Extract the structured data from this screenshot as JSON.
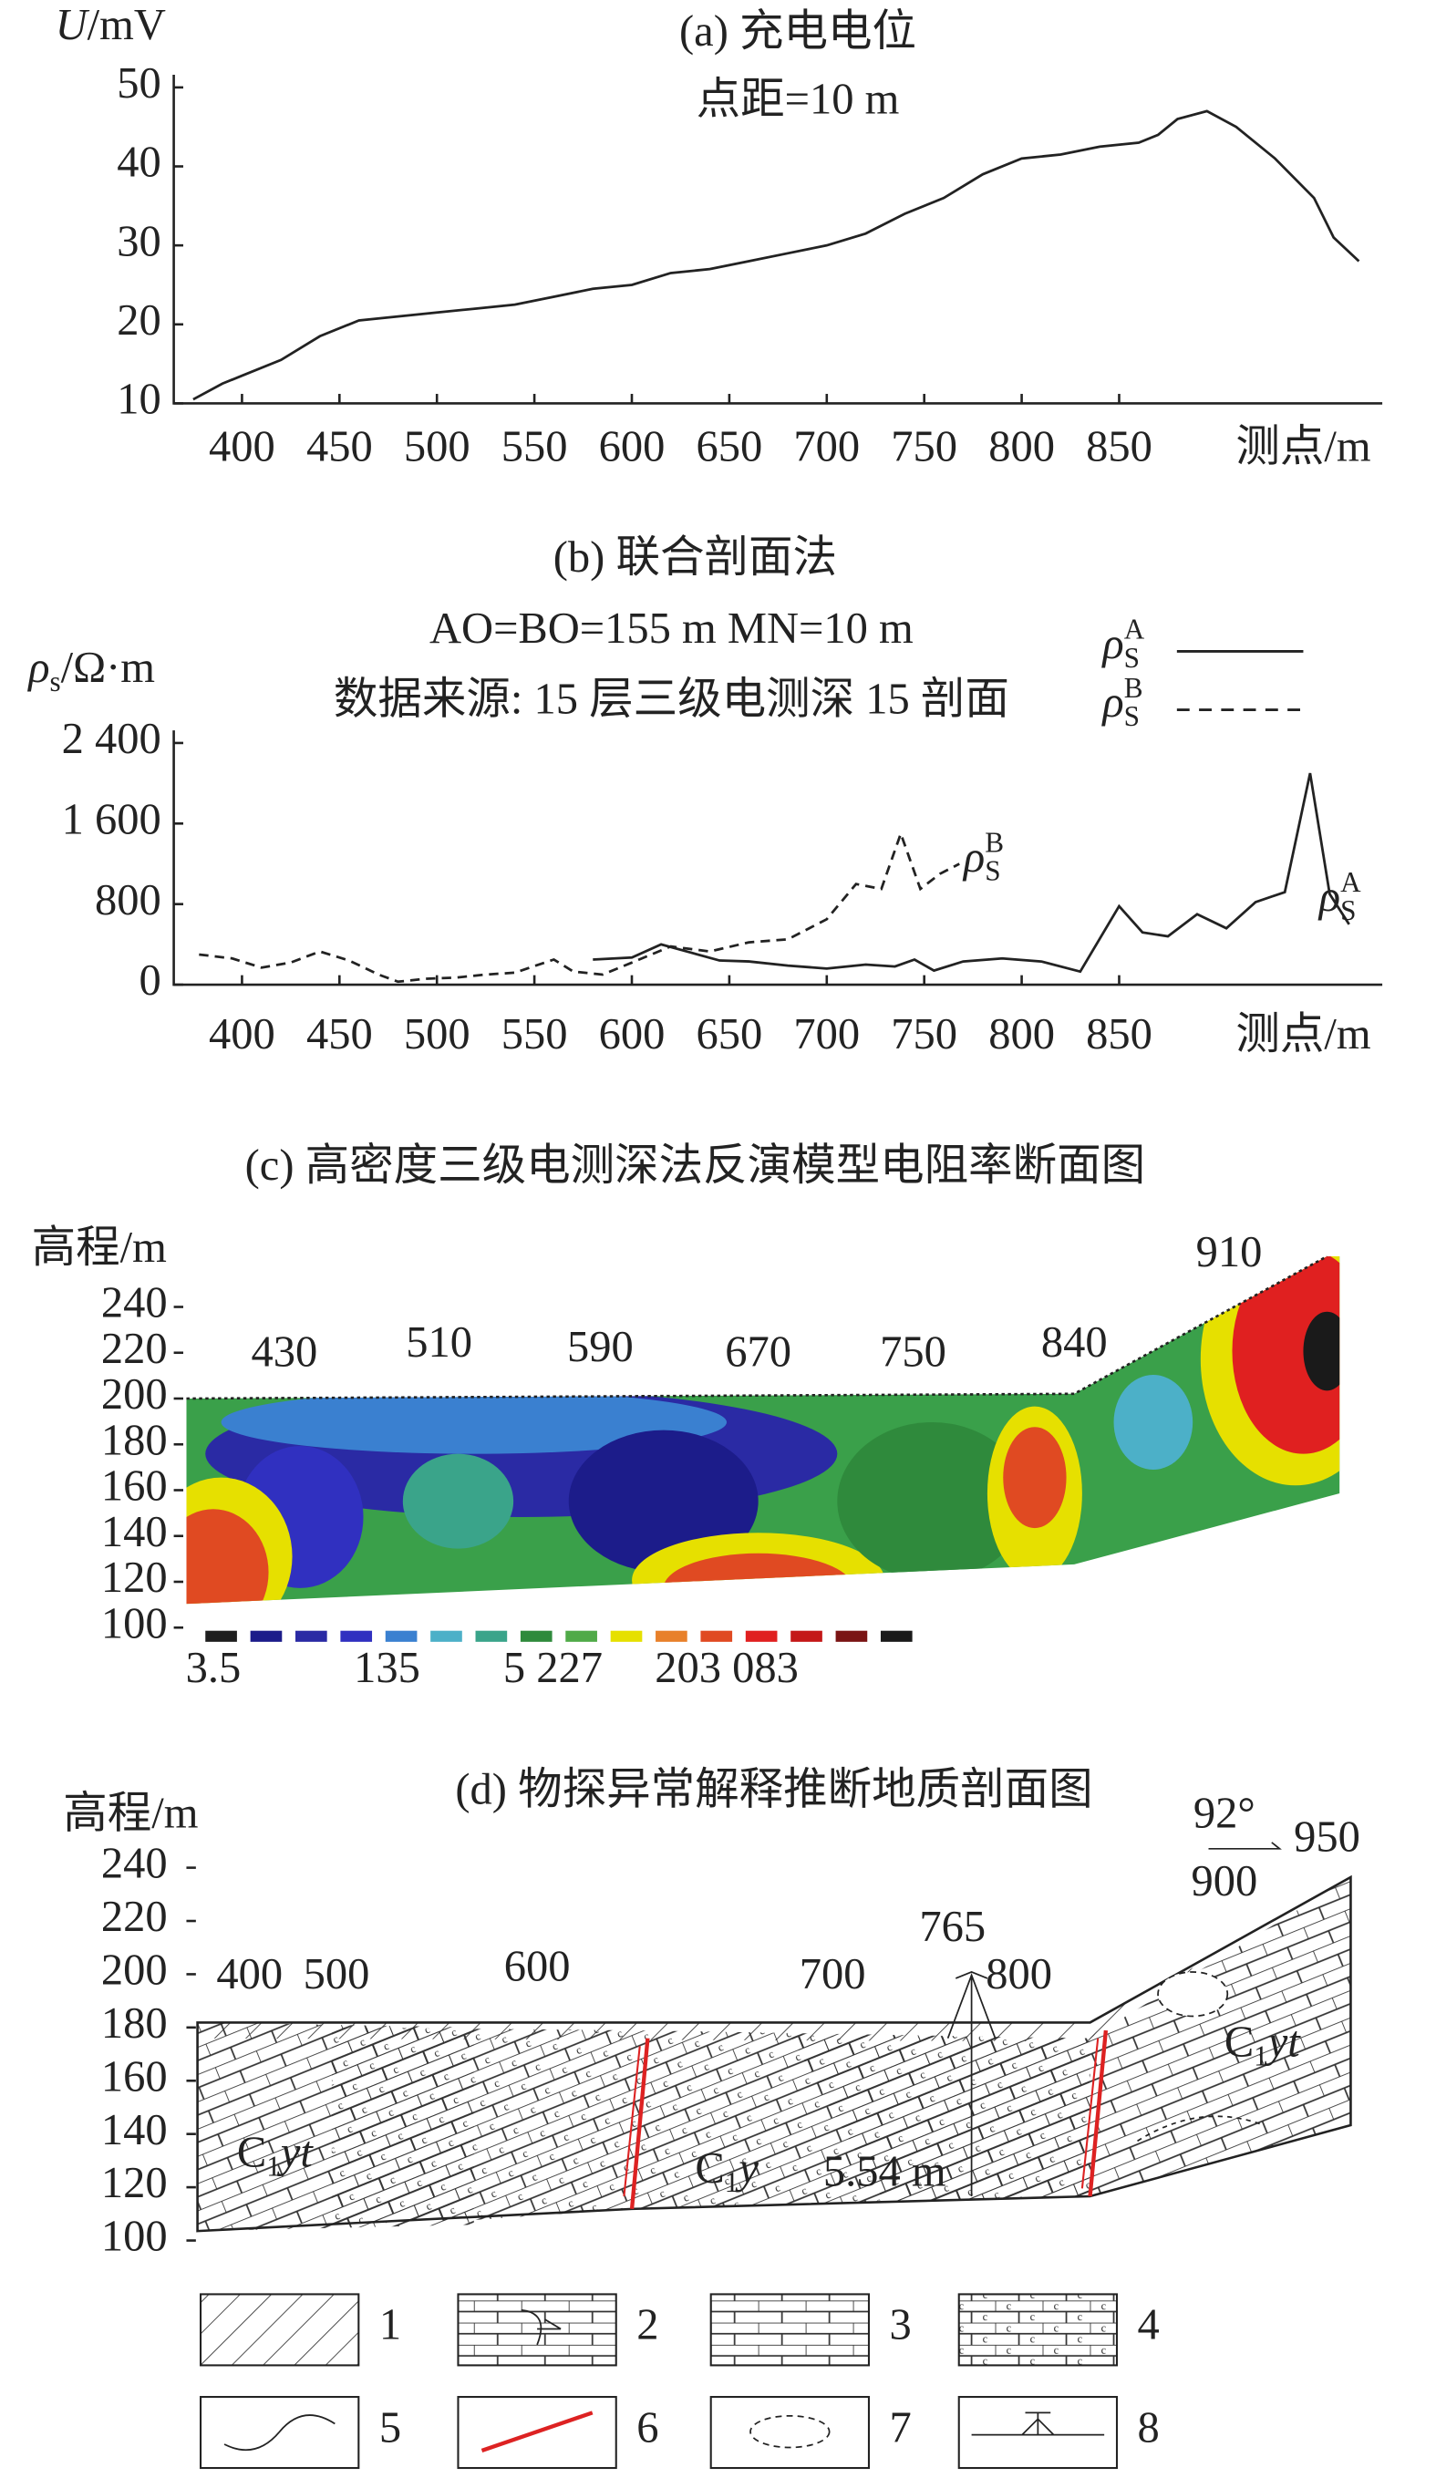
{
  "chart_data": [
    {
      "type": "line",
      "title": "(a) 充电电位",
      "subtitle": "点距=10 m",
      "y_label_var": "U",
      "y_label_unit": "/mV",
      "x_label": "测点/m",
      "xlim": [
        365,
        985
      ],
      "xticks": [
        400,
        450,
        500,
        550,
        600,
        650,
        700,
        750,
        800,
        850
      ],
      "ylim": [
        10,
        50
      ],
      "yticks": [
        10,
        20,
        30,
        40,
        50
      ],
      "x": [
        375,
        390,
        400,
        420,
        440,
        460,
        480,
        500,
        520,
        540,
        560,
        580,
        600,
        620,
        640,
        660,
        680,
        700,
        720,
        740,
        760,
        780,
        800,
        820,
        840,
        860,
        870,
        880,
        895,
        910,
        930,
        950,
        960,
        973
      ],
      "series": [
        {
          "name": null,
          "color": "#222",
          "values": [
            10.5,
            12.5,
            13.5,
            15.5,
            18.5,
            20.5,
            21,
            21.5,
            22,
            22.5,
            23.5,
            24.5,
            25,
            26.5,
            27,
            28,
            29,
            30,
            31.5,
            34,
            36,
            39,
            41,
            41.5,
            42.5,
            43,
            44,
            46,
            47,
            45,
            41,
            36,
            31,
            28
          ]
        }
      ]
    },
    {
      "type": "line",
      "title": "(b) 联合剖面法",
      "subtitle": [
        "AO=BO=155 m  MN=10 m",
        "数据来源: 15 层三级电测深 15 剖面"
      ],
      "y_label_var": "ρ",
      "y_label_sub": "s",
      "y_label_unit": "/Ω·m",
      "x_label": "测点/m",
      "xlim": [
        365,
        985
      ],
      "xticks": [
        400,
        450,
        500,
        550,
        600,
        650,
        700,
        750,
        800,
        850
      ],
      "ylim": [
        0,
        2400
      ],
      "yticks": [
        0,
        800,
        {
          "value": 1600,
          "label": "1 600"
        },
        {
          "value": 2400,
          "label": "2 400"
        }
      ],
      "series": [
        {
          "name": "ρ",
          "name_sub": "S",
          "name_sup": "A",
          "color": "#222",
          "style": "solid",
          "x": [
            580,
            600,
            615,
            630,
            645,
            660,
            680,
            700,
            720,
            735,
            745,
            755,
            770,
            790,
            810,
            830,
            850,
            862,
            875,
            890,
            905,
            920,
            935,
            948,
            958,
            968
          ],
          "values": [
            250,
            270,
            400,
            320,
            240,
            230,
            190,
            160,
            200,
            180,
            250,
            140,
            230,
            260,
            230,
            130,
            780,
            520,
            480,
            700,
            560,
            820,
            920,
            2100,
            900,
            600
          ]
        },
        {
          "name": "ρ",
          "name_sub": "S",
          "name_sup": "B",
          "color": "#222",
          "style": "dashed",
          "x": [
            378,
            395,
            410,
            425,
            440,
            455,
            470,
            480,
            495,
            510,
            525,
            540,
            560,
            570,
            585,
            600,
            620,
            640,
            660,
            680,
            700,
            715,
            728,
            738,
            748,
            758,
            768
          ],
          "values": [
            300,
            260,
            170,
            220,
            330,
            240,
            100,
            30,
            60,
            70,
            100,
            120,
            250,
            130,
            100,
            220,
            380,
            330,
            420,
            450,
            650,
            1000,
            950,
            1500,
            950,
            1100,
            1200
          ]
        }
      ]
    }
  ],
  "section_c": {
    "title": "(c) 高密度三级电测深法反演模型电阻率断面图",
    "y_label": "高程/m",
    "ylim": [
      100,
      240
    ],
    "yticks": [
      100,
      120,
      140,
      160,
      180,
      200,
      220,
      240
    ],
    "stations": [
      "430",
      "510",
      "590",
      "670",
      "750",
      "840",
      "910"
    ],
    "colorbar_colors": [
      "#1e1e1e",
      "#1c1c8a",
      "#2a2aa4",
      "#3030c0",
      "#3a80d0",
      "#4cb0c8",
      "#3aa48a",
      "#2f8a3c",
      "#50aa48",
      "#e6e000",
      "#e8802a",
      "#e04a22",
      "#e02020",
      "#c41818",
      "#7a1414",
      "#1a1a1a"
    ],
    "colorbar_labels": [
      "3.5",
      "135",
      "5 227",
      "203 083"
    ]
  },
  "section_d": {
    "title": "(d) 物探异常解释推断地质剖面图",
    "y_label": "高程/m",
    "ylim": [
      100,
      240
    ],
    "yticks": [
      100,
      120,
      140,
      160,
      180,
      200,
      220,
      240
    ],
    "labels": [
      "400",
      "500",
      "600",
      "700",
      "765",
      "800",
      "92°",
      "900",
      "950",
      "5.54 m"
    ],
    "units": [
      {
        "c": "C",
        "sub": "1",
        "rest": "yt"
      },
      {
        "c": "C",
        "sub": "1",
        "rest": "y"
      },
      {
        "c": "C",
        "sub": "1",
        "rest": "yt"
      }
    ],
    "legend": [
      "1",
      "2",
      "3",
      "4",
      "5",
      "6",
      "7",
      "8"
    ]
  }
}
